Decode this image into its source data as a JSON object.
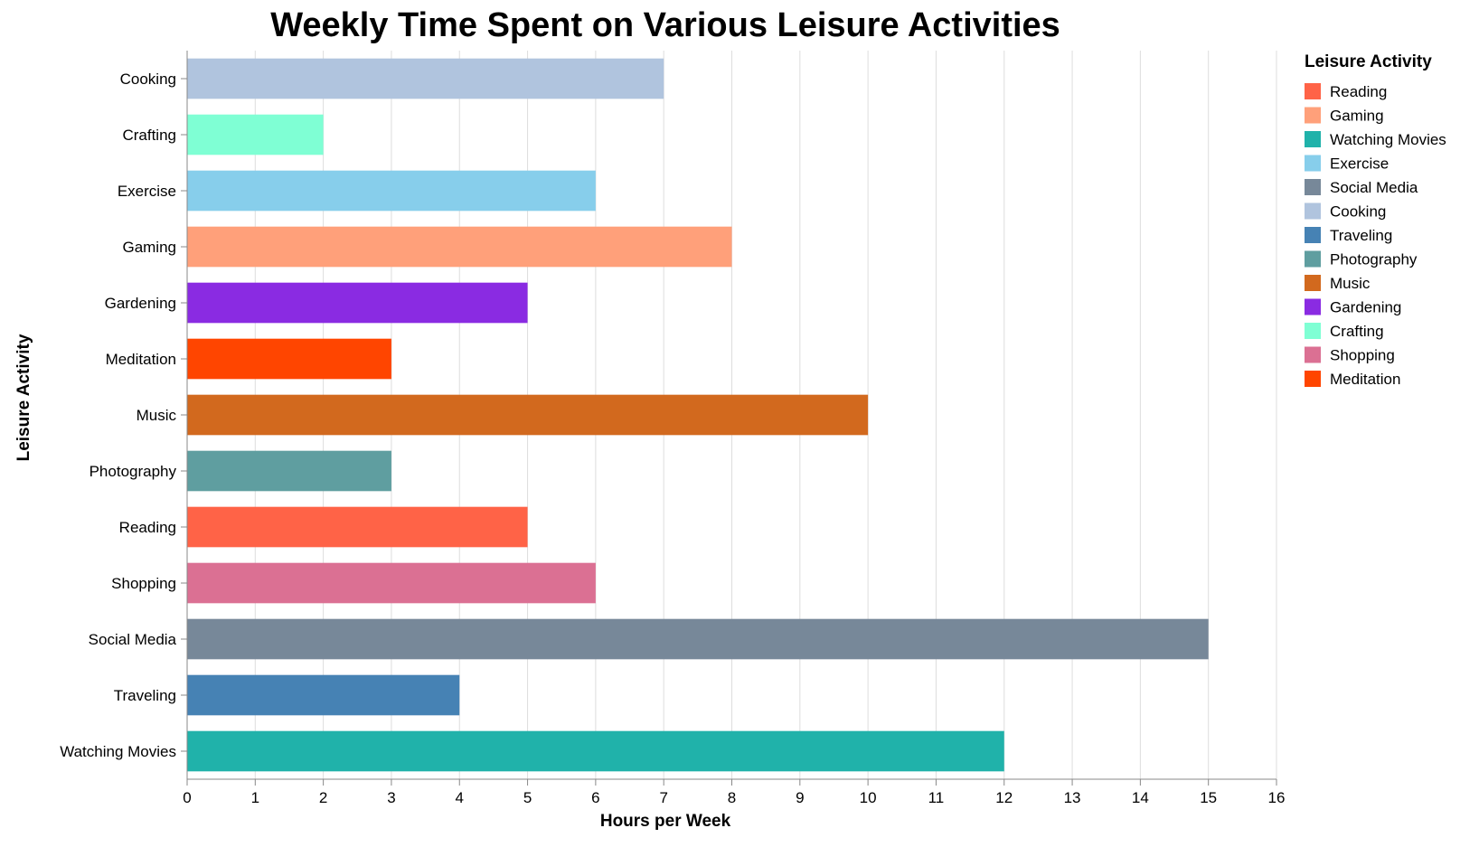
{
  "chart_data": {
    "type": "bar",
    "orientation": "horizontal",
    "title": "Weekly Time Spent on Various Leisure Activities",
    "xlabel": "Hours per Week",
    "ylabel": "Leisure Activity",
    "xlim": [
      0,
      16
    ],
    "xticks": [
      0,
      1,
      2,
      3,
      4,
      5,
      6,
      7,
      8,
      9,
      10,
      11,
      12,
      13,
      14,
      15,
      16
    ],
    "grid": true,
    "legend": {
      "title": "Leisure Activity",
      "position": "right",
      "entries": [
        {
          "label": "Reading",
          "color": "#FF6347"
        },
        {
          "label": "Gaming",
          "color": "#FFA07A"
        },
        {
          "label": "Watching Movies",
          "color": "#20B2AA"
        },
        {
          "label": "Exercise",
          "color": "#87CEEB"
        },
        {
          "label": "Social Media",
          "color": "#778899"
        },
        {
          "label": "Cooking",
          "color": "#B0C4DE"
        },
        {
          "label": "Traveling",
          "color": "#4682B4"
        },
        {
          "label": "Photography",
          "color": "#5F9EA0"
        },
        {
          "label": "Music",
          "color": "#D2691E"
        },
        {
          "label": "Gardening",
          "color": "#8A2BE2"
        },
        {
          "label": "Crafting",
          "color": "#7FFFD4"
        },
        {
          "label": "Shopping",
          "color": "#DB7093"
        },
        {
          "label": "Meditation",
          "color": "#FF4500"
        }
      ]
    },
    "categories": [
      "Cooking",
      "Crafting",
      "Exercise",
      "Gaming",
      "Gardening",
      "Meditation",
      "Music",
      "Photography",
      "Reading",
      "Shopping",
      "Social Media",
      "Traveling",
      "Watching Movies"
    ],
    "values": [
      7,
      2,
      6,
      8,
      5,
      3,
      10,
      3,
      5,
      6,
      15,
      4,
      12
    ]
  }
}
